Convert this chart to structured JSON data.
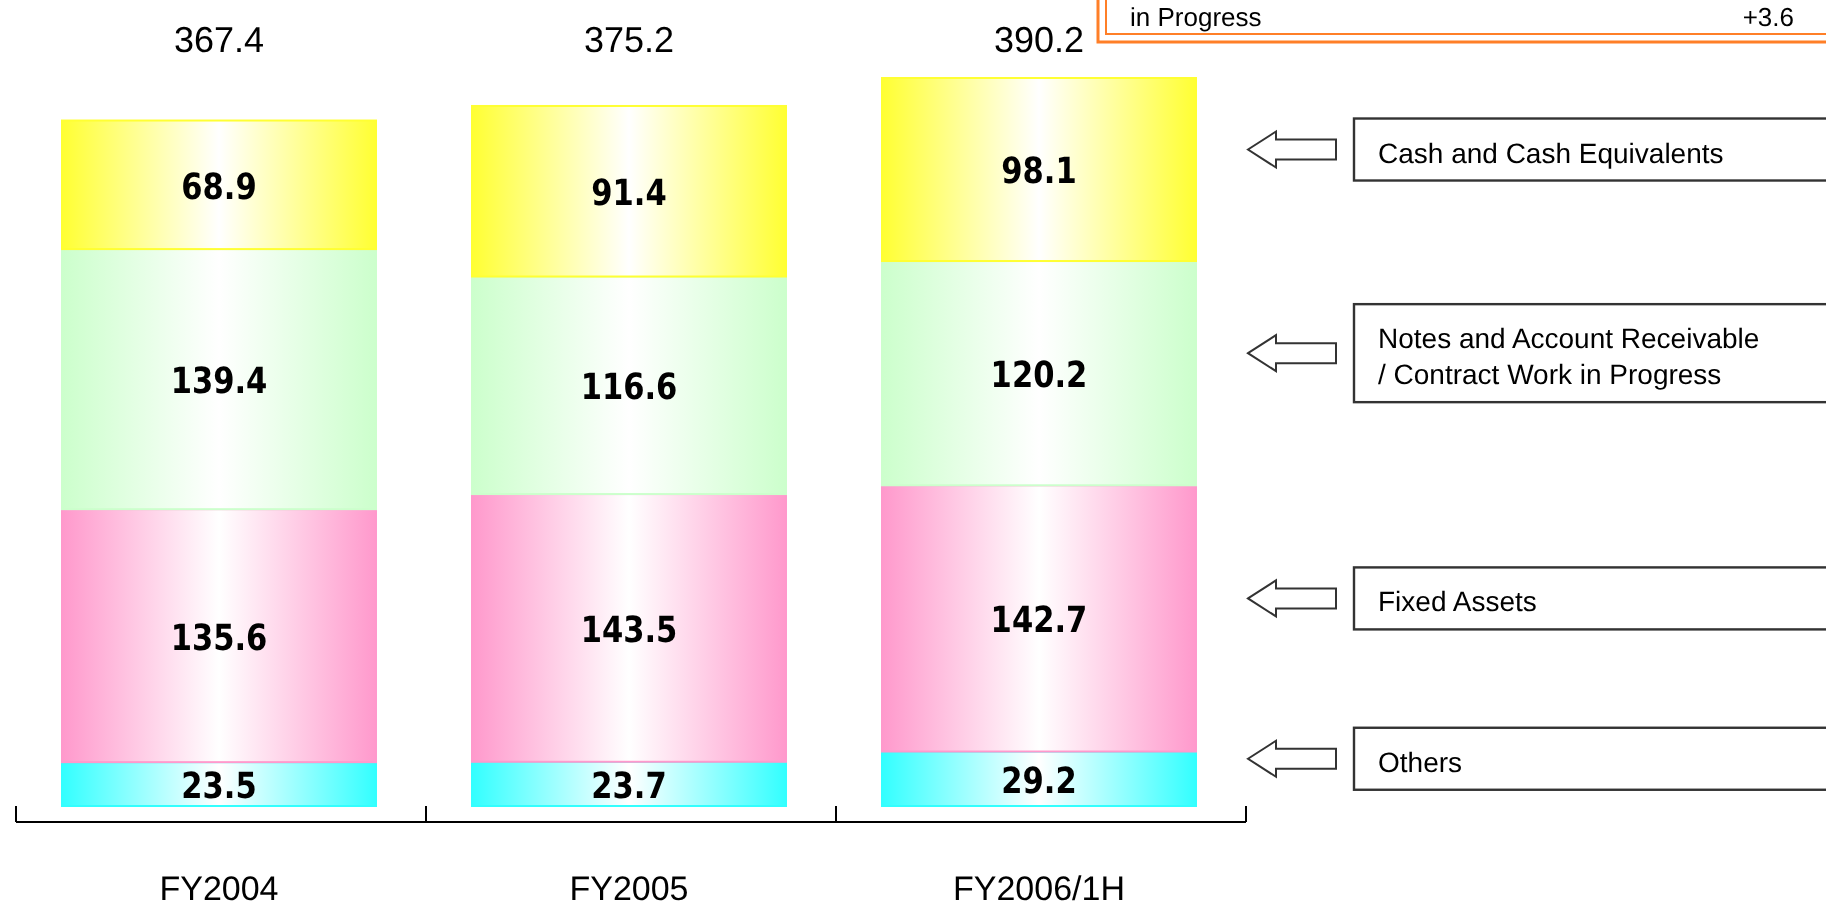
{
  "chart_data": {
    "type": "bar",
    "stacked": true,
    "categories": [
      "FY2004",
      "FY2005",
      "FY2006/1H"
    ],
    "series": [
      {
        "name": "Others",
        "color": "#33ffff",
        "values": [
          23.5,
          23.7,
          29.2
        ]
      },
      {
        "name": "Fixed Assets",
        "color": "#ff99cc",
        "values": [
          135.6,
          143.5,
          142.7
        ]
      },
      {
        "name": "Notes and Account Receivable / Contract Work in Progress",
        "color": "#ccffcc",
        "values": [
          139.4,
          116.6,
          120.2
        ]
      },
      {
        "name": "Cash and Cash Equivalents",
        "color": "#ffff33",
        "values": [
          68.9,
          91.4,
          98.1
        ]
      }
    ],
    "data_labels": true,
    "totals": [
      "367.4",
      "375.2",
      "390.2"
    ],
    "legend": "right",
    "annotations": [
      "in Progress",
      "+3.6"
    ]
  }
}
